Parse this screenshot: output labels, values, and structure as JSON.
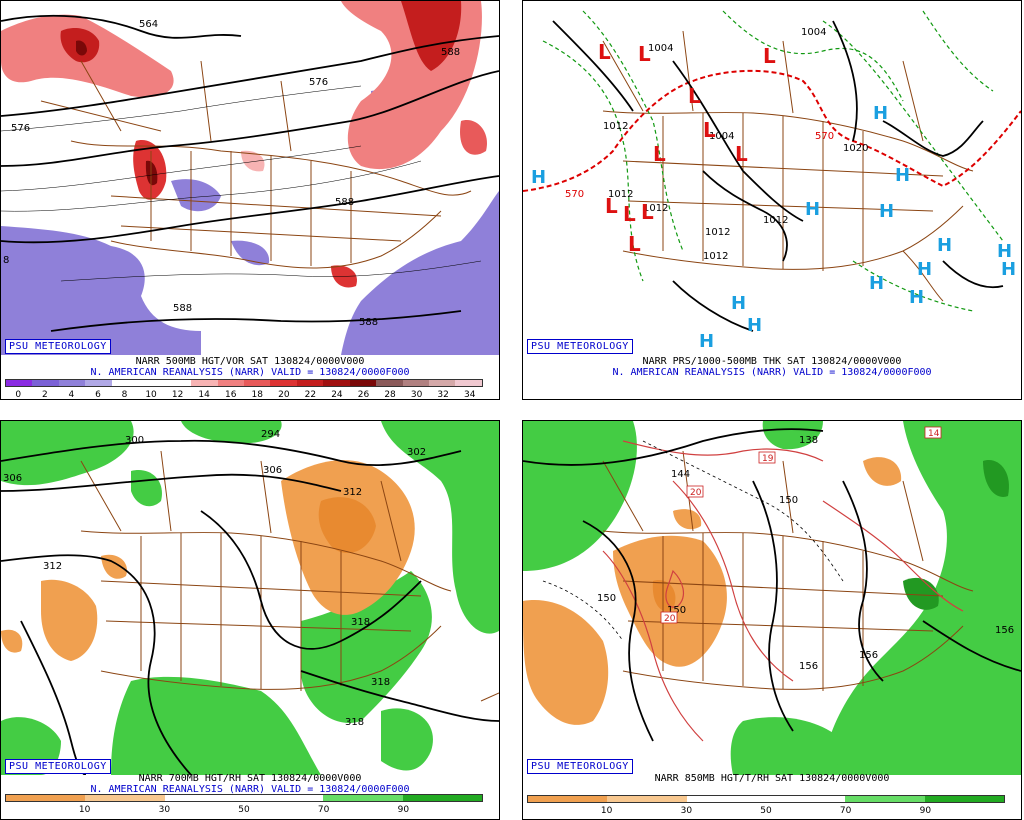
{
  "panels": [
    {
      "badge": "PSU METEOROLOGY",
      "caption_line1": "NARR 500MB HGT/VOR SAT 130824/0000V000",
      "caption_line2": "N. AMERICAN REANALYSIS (NARR) VALID = 130824/0000F000",
      "contour_labels": [
        "564",
        "576",
        "576",
        "588",
        "588",
        "588",
        "588",
        "8"
      ],
      "colorbar": {
        "ticks": [
          "0",
          "2",
          "4",
          "6",
          "8",
          "10",
          "12",
          "14",
          "16",
          "18",
          "20",
          "22",
          "24",
          "26",
          "28",
          "30",
          "32",
          "34"
        ],
        "colors": [
          "#8a2be2",
          "#7b61d6",
          "#8f80d9",
          "#b0a8e6",
          "#ffffff",
          "#ffffff",
          "#ffffff",
          "#f7b3b3",
          "#f08080",
          "#e85a5a",
          "#dd3333",
          "#c41e1e",
          "#a01010",
          "#7a0808",
          "#8b5a5a",
          "#b08080",
          "#d4a8a8",
          "#f0c8d0"
        ]
      }
    },
    {
      "badge": "PSU METEOROLOGY",
      "caption_line1": "NARR PRS/1000-500MB THK SAT 130824/0000V000",
      "caption_line2": "N. AMERICAN REANALYSIS (NARR) VALID = 130824/0000F000",
      "contour_labels": [
        "1004",
        "1004",
        "1012",
        "1012",
        "1012",
        "1012",
        "1012",
        "1004",
        "1020",
        "570",
        "570",
        "1012"
      ],
      "lows": [
        "L",
        "L",
        "L",
        "L",
        "L",
        "L",
        "L",
        "L",
        "L",
        "L",
        "L"
      ],
      "highs": [
        "H",
        "H",
        "H",
        "H",
        "H",
        "H",
        "H",
        "H",
        "H",
        "H",
        "H",
        "H",
        "H",
        "H"
      ]
    },
    {
      "badge": "PSU METEOROLOGY",
      "caption_line1": "NARR 700MB HGT/RH SAT 130824/0000V000",
      "caption_line2": "N. AMERICAN REANALYSIS (NARR) VALID = 130824/0000F000",
      "contour_labels": [
        "300",
        "294",
        "306",
        "306",
        "302",
        "312",
        "312",
        "318",
        "318",
        "318"
      ],
      "colorbar": {
        "ticks": [
          "10",
          "30",
          "50",
          "70",
          "90"
        ],
        "colors": [
          "#f0a050",
          "#f8c890",
          "#ffffff",
          "#ffffff",
          "#66dd66",
          "#22aa22"
        ]
      }
    },
    {
      "badge": "PSU METEOROLOGY",
      "caption_line1": "NARR 850MB HGT/T/RH SAT 130824/0000V000",
      "caption_line2": "",
      "contour_labels": [
        "138",
        "144",
        "150",
        "150",
        "150",
        "156",
        "156",
        "156",
        "19",
        "20",
        "20",
        "14"
      ],
      "colorbar": {
        "ticks": [
          "10",
          "30",
          "50",
          "70",
          "90"
        ],
        "colors": [
          "#f0a050",
          "#f8c890",
          "#ffffff",
          "#ffffff",
          "#66dd66",
          "#22aa22"
        ]
      }
    }
  ]
}
